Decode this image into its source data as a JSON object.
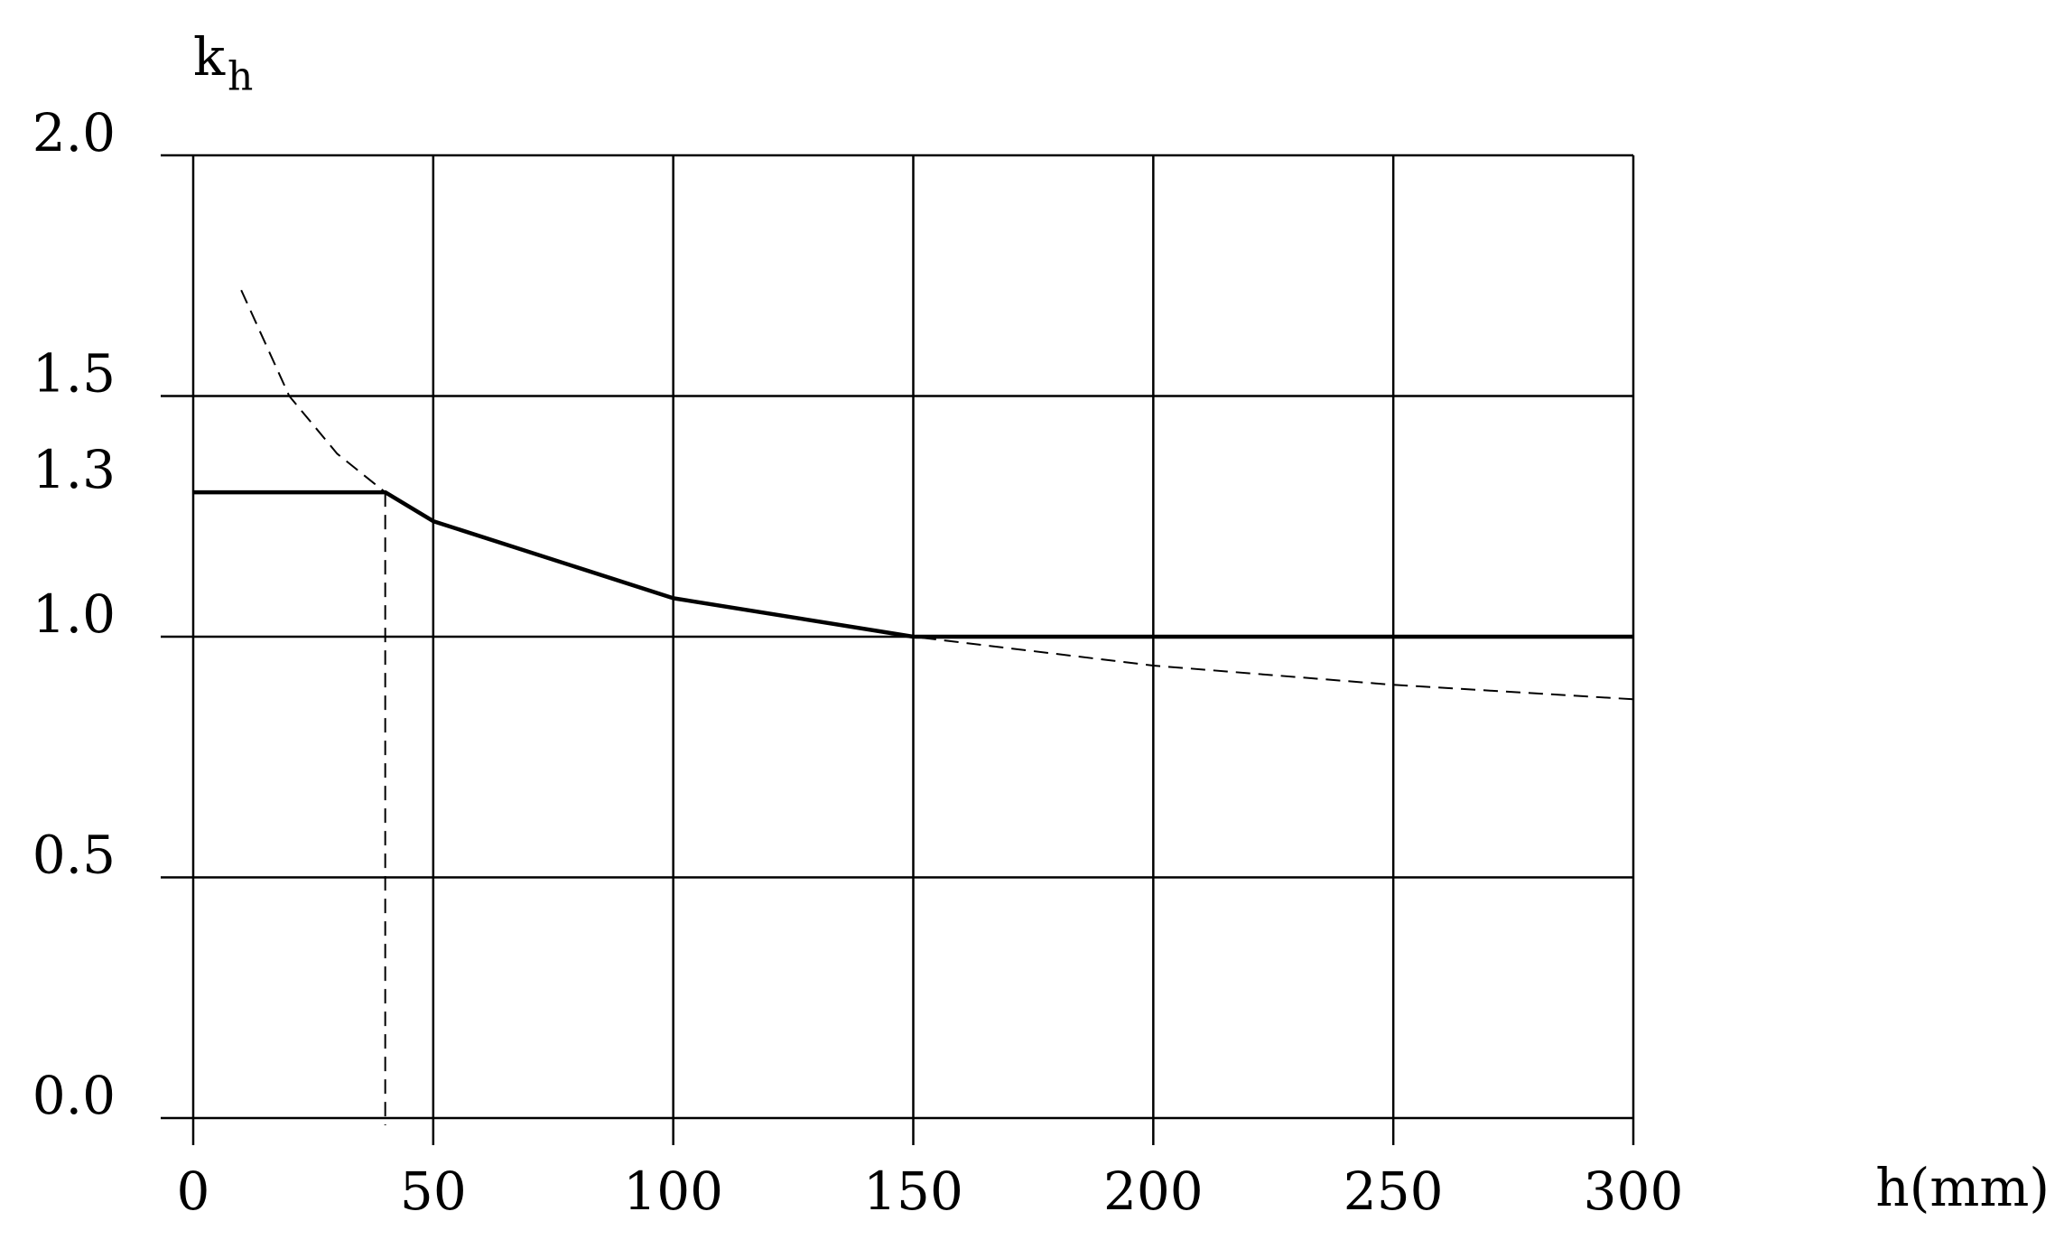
{
  "chart_data": {
    "type": "line",
    "ylabel": "k",
    "ylabel_sub": "h",
    "xlabel": "h(mm)",
    "xlim": [
      0,
      300
    ],
    "ylim": [
      0,
      2.0
    ],
    "xticks": [
      0,
      50,
      100,
      150,
      200,
      250,
      300
    ],
    "yticks": [
      {
        "value": 0,
        "label": "0.0"
      },
      {
        "value": 0.5,
        "label": "0.5"
      },
      {
        "value": 1.0,
        "label": "1.0"
      },
      {
        "value": 1.3,
        "label": "1.3"
      },
      {
        "value": 1.5,
        "label": "1.5"
      },
      {
        "value": 2.0,
        "label": "2.0"
      }
    ],
    "grid_y": [
      0,
      0.5,
      1.0,
      1.5,
      2.0
    ],
    "grid": true,
    "series": [
      {
        "style": "solid",
        "color": "#000000",
        "x": [
          0,
          40,
          50,
          100,
          150,
          300
        ],
        "values": [
          1.3,
          1.3,
          1.24,
          1.08,
          1.0,
          1.0
        ]
      },
      {
        "style": "dashed",
        "color": "#000000",
        "x": [
          10,
          20,
          30,
          40,
          50,
          100,
          150,
          200,
          250,
          300
        ],
        "values": [
          1.72,
          1.5,
          1.38,
          1.3,
          1.24,
          1.08,
          1.0,
          0.94,
          0.9,
          0.87
        ]
      }
    ],
    "reference_lines": [
      {
        "x": 40,
        "y": 1.3
      },
      {
        "x": 150,
        "y": 1.0
      }
    ]
  }
}
